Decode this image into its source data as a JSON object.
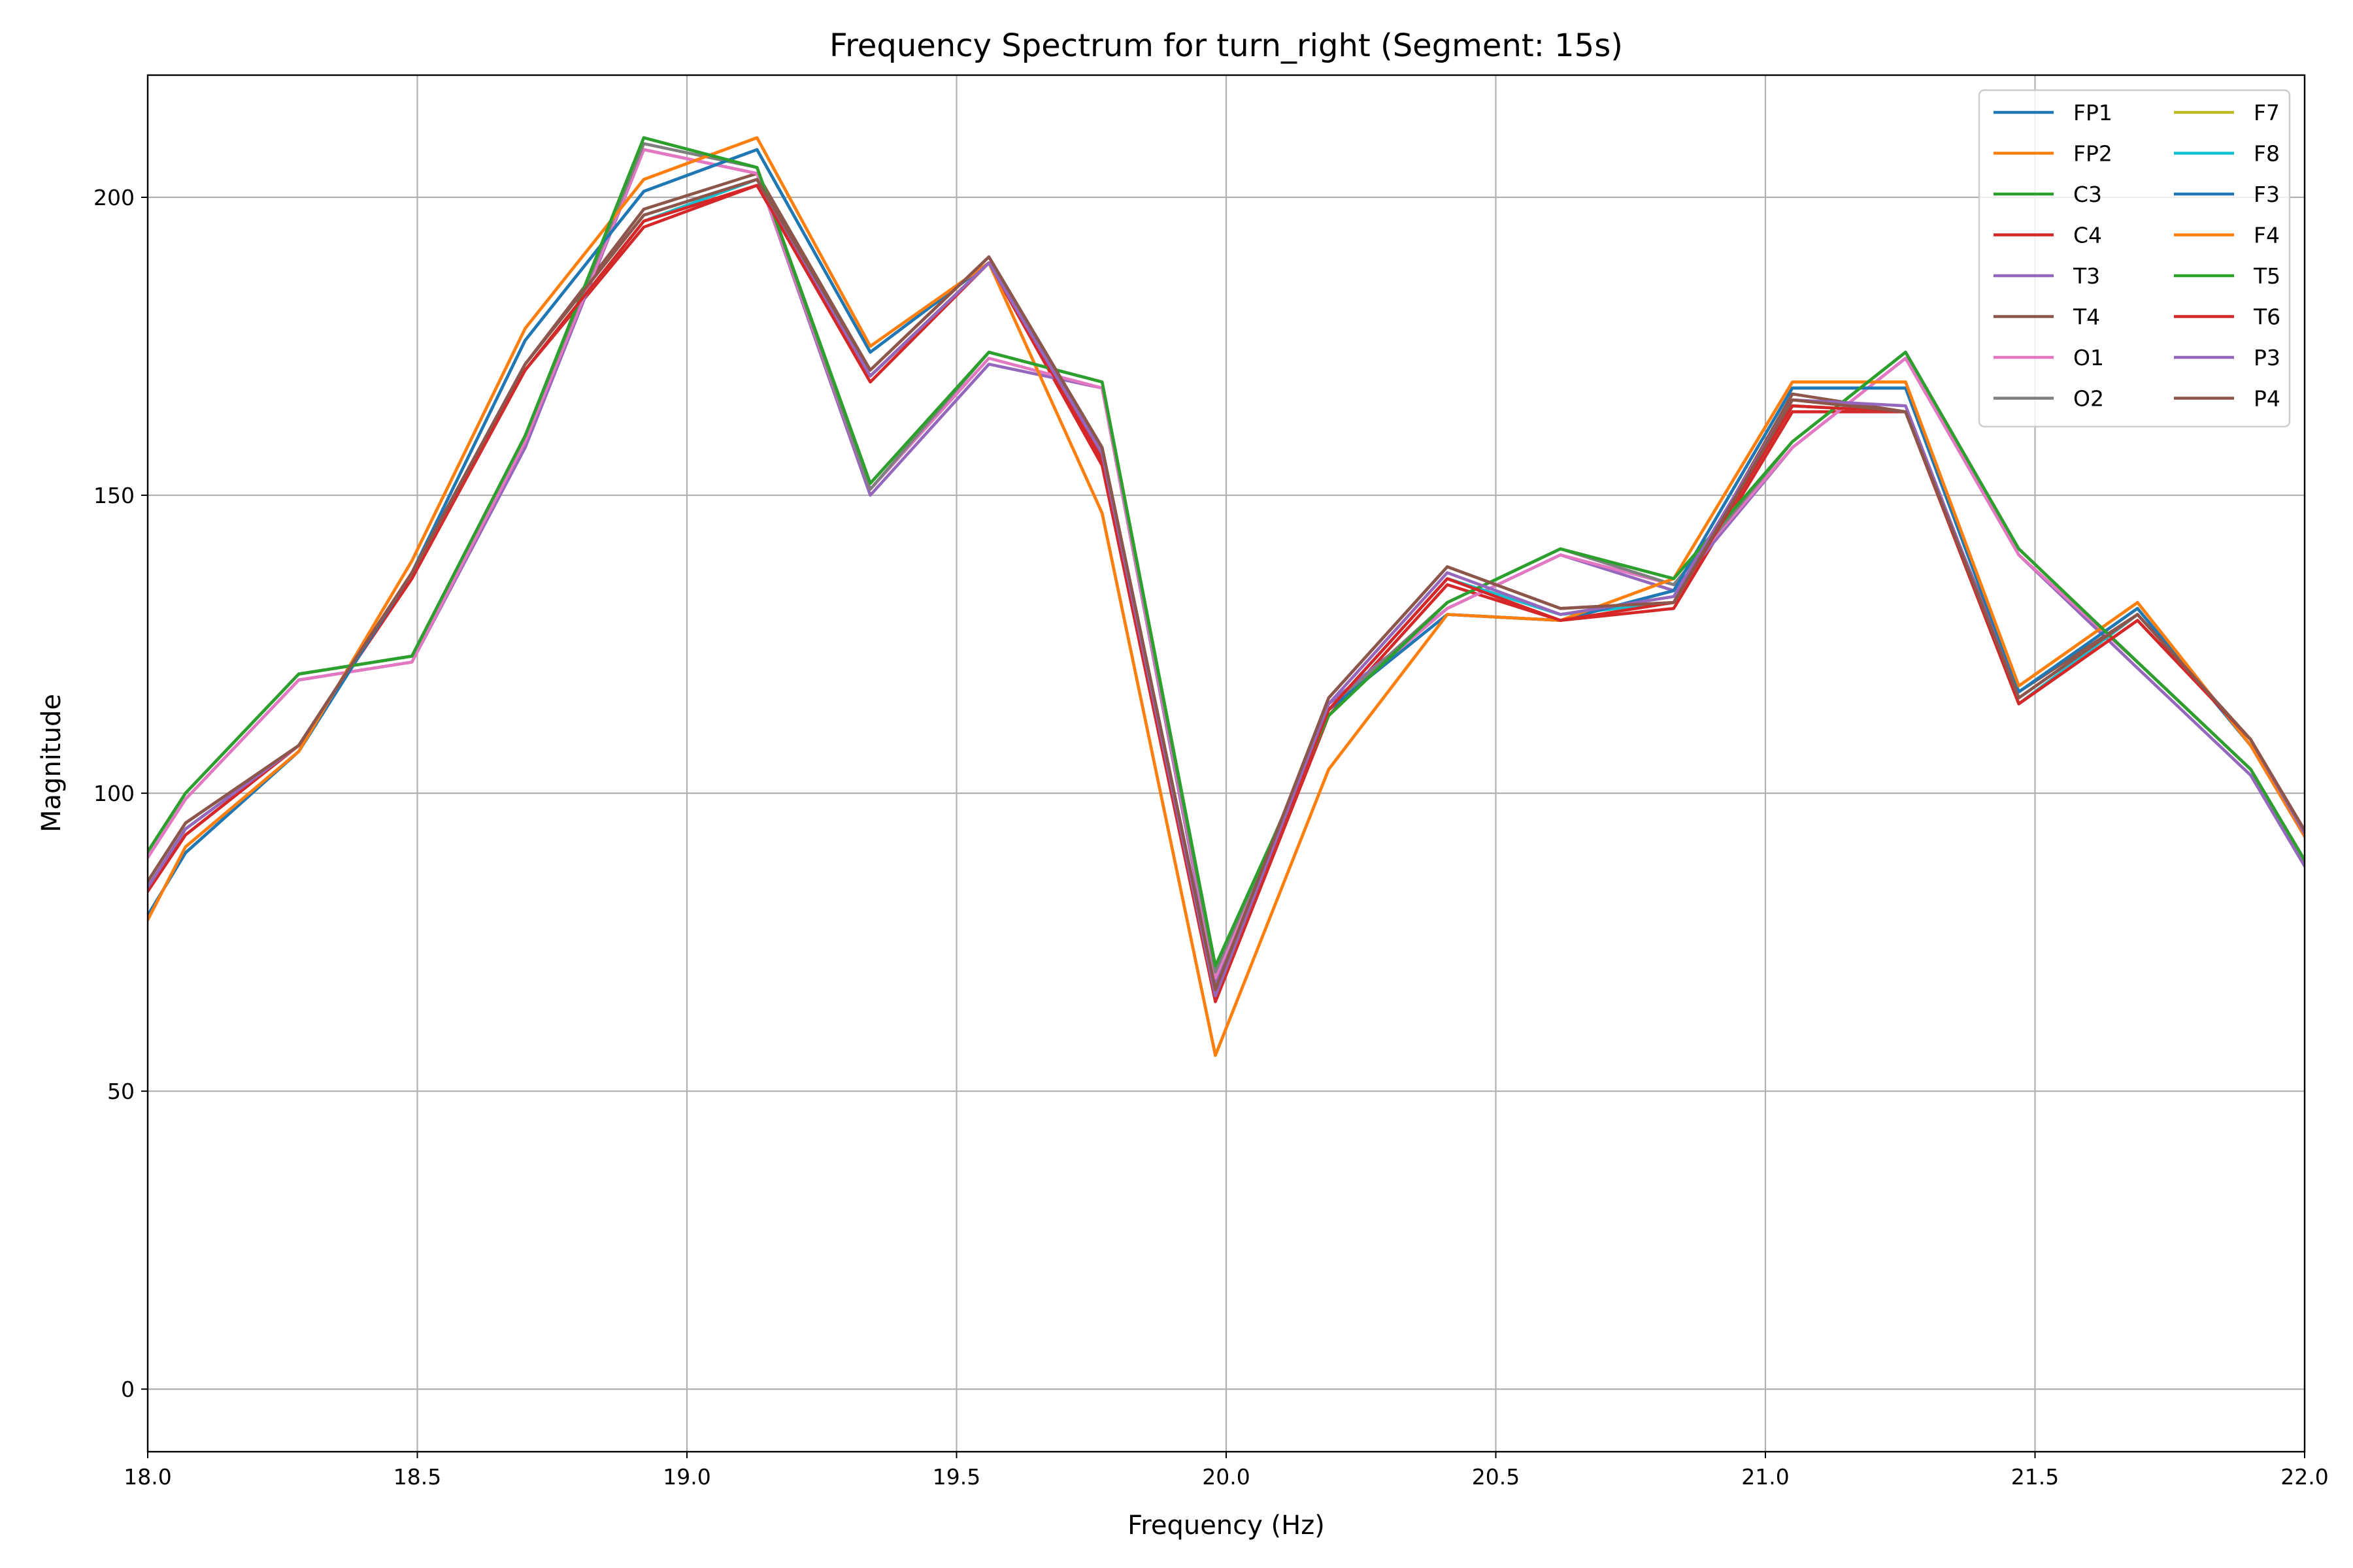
{
  "chart_data": {
    "type": "line",
    "title": "Frequency Spectrum for turn_right (Segment: 15s)",
    "xlabel": "Frequency (Hz)",
    "ylabel": "Magnitude",
    "xlim": [
      18.0,
      22.0
    ],
    "ylim": [
      -10.5,
      220.5
    ],
    "xticks": [
      18.0,
      18.5,
      19.0,
      19.5,
      20.0,
      20.5,
      21.0,
      21.5,
      22.0
    ],
    "xtick_labels": [
      "18.0",
      "18.5",
      "19.0",
      "19.5",
      "20.0",
      "20.5",
      "21.0",
      "21.5",
      "22.0"
    ],
    "yticks": [
      0,
      50,
      100,
      150,
      200
    ],
    "ytick_labels": [
      "0",
      "50",
      "100",
      "150",
      "200"
    ],
    "grid": true,
    "legend_placement": "top-right",
    "legend_columns": 2,
    "x": [
      17.87,
      18.07,
      18.28,
      18.49,
      18.7,
      18.92,
      19.13,
      19.34,
      19.56,
      19.77,
      19.98,
      20.19,
      20.41,
      20.62,
      20.83,
      21.05,
      21.26,
      21.47,
      21.69,
      21.9,
      22.11
    ],
    "series": [
      {
        "name": "FP1",
        "color": "#1f77b4",
        "values": [
          60,
          90,
          107,
          137,
          176,
          201,
          208,
          174,
          189,
          157,
          67,
          114,
          130,
          129,
          134,
          168,
          168,
          117,
          131,
          108,
          76
        ]
      },
      {
        "name": "FP2",
        "color": "#ff7f0e",
        "values": [
          56,
          91,
          107,
          139,
          178,
          203,
          210,
          175,
          189,
          147,
          56,
          104,
          130,
          129,
          136,
          169,
          169,
          118,
          132,
          108,
          76
        ]
      },
      {
        "name": "C3",
        "color": "#2ca02c",
        "values": [
          72,
          100,
          120,
          123,
          160,
          210,
          205,
          152,
          174,
          169,
          71,
          113,
          132,
          141,
          136,
          159,
          174,
          141,
          122,
          104,
          72
        ]
      },
      {
        "name": "C4",
        "color": "#d62728",
        "values": [
          66,
          93,
          108,
          136,
          171,
          195,
          202,
          169,
          189,
          155,
          65,
          113,
          135,
          129,
          131,
          164,
          164,
          115,
          129,
          109,
          76
        ]
      },
      {
        "name": "T3",
        "color": "#9467bd",
        "values": [
          71,
          99,
          119,
          122,
          158,
          208,
          204,
          150,
          172,
          168,
          68,
          115,
          131,
          140,
          134,
          158,
          173,
          140,
          121,
          103,
          71
        ]
      },
      {
        "name": "T4",
        "color": "#8c564b",
        "values": [
          67,
          95,
          108,
          137,
          172,
          198,
          204,
          171,
          190,
          158,
          67,
          116,
          138,
          131,
          132,
          167,
          164,
          117,
          130,
          109,
          77
        ]
      },
      {
        "name": "O1",
        "color": "#e377c2",
        "values": [
          71,
          99,
          119,
          122,
          159,
          208,
          204,
          151,
          173,
          168,
          69,
          114,
          131,
          140,
          135,
          158,
          173,
          140,
          122,
          104,
          72
        ]
      },
      {
        "name": "O2",
        "color": "#7f7f7f",
        "values": [
          72,
          100,
          120,
          123,
          160,
          209,
          205,
          151,
          174,
          169,
          70,
          114,
          132,
          141,
          135,
          159,
          174,
          141,
          122,
          104,
          72
        ]
      },
      {
        "name": "F7",
        "color": "#bcbd22",
        "values": [
          66,
          94,
          108,
          137,
          171,
          196,
          203,
          170,
          189,
          157,
          66,
          114,
          136,
          130,
          132,
          165,
          164,
          115,
          130,
          109,
          76
        ]
      },
      {
        "name": "F8",
        "color": "#17becf",
        "values": [
          66,
          94,
          108,
          137,
          171,
          196,
          203,
          170,
          189,
          157,
          66,
          114,
          136,
          130,
          132,
          165,
          164,
          115,
          130,
          109,
          76
        ]
      },
      {
        "name": "F3",
        "color": "#1f77b4",
        "values": [
          60,
          90,
          107,
          137,
          176,
          201,
          208,
          174,
          189,
          157,
          67,
          114,
          130,
          129,
          134,
          168,
          168,
          117,
          131,
          108,
          76
        ]
      },
      {
        "name": "F4",
        "color": "#ff7f0e",
        "values": [
          56,
          91,
          107,
          139,
          178,
          203,
          210,
          175,
          189,
          147,
          56,
          104,
          130,
          129,
          136,
          169,
          169,
          118,
          132,
          108,
          76
        ]
      },
      {
        "name": "T5",
        "color": "#2ca02c",
        "values": [
          72,
          100,
          120,
          123,
          160,
          210,
          205,
          152,
          174,
          169,
          71,
          113,
          132,
          141,
          136,
          159,
          174,
          141,
          122,
          104,
          72
        ]
      },
      {
        "name": "T6",
        "color": "#d62728",
        "values": [
          66,
          93,
          108,
          137,
          171,
          196,
          202,
          170,
          189,
          156,
          66,
          114,
          136,
          129,
          132,
          165,
          164,
          115,
          129,
          109,
          76
        ]
      },
      {
        "name": "P3",
        "color": "#9467bd",
        "values": [
          66,
          94,
          108,
          137,
          172,
          197,
          203,
          170,
          189,
          157,
          66,
          115,
          137,
          130,
          133,
          166,
          165,
          116,
          130,
          109,
          76
        ]
      },
      {
        "name": "P4",
        "color": "#8c564b",
        "values": [
          67,
          95,
          108,
          137,
          172,
          197,
          203,
          171,
          190,
          158,
          67,
          116,
          138,
          131,
          132,
          166,
          164,
          116,
          130,
          109,
          77
        ]
      }
    ]
  }
}
